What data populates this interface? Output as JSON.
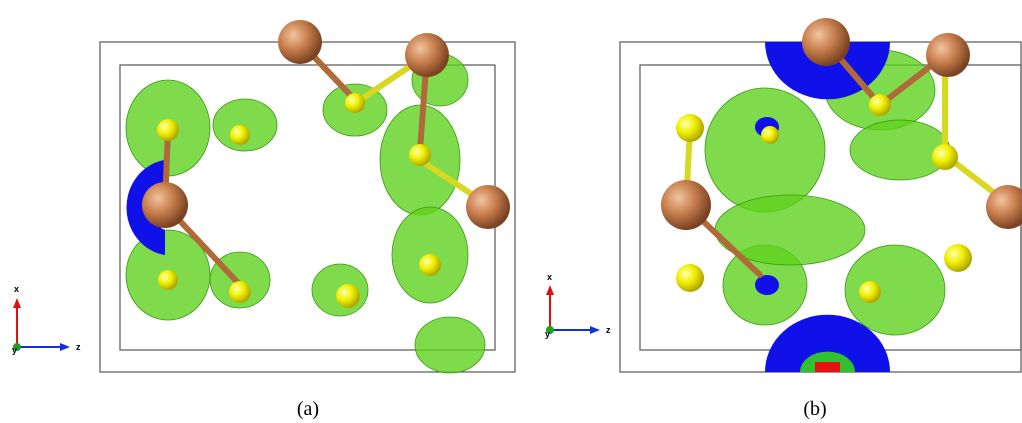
{
  "panels": [
    {
      "label": "(a)",
      "axes": {
        "x": "x",
        "y": "y",
        "z": "z"
      }
    },
    {
      "label": "(b)",
      "axes": {
        "x": "x",
        "y": "y",
        "z": "z"
      }
    }
  ]
}
